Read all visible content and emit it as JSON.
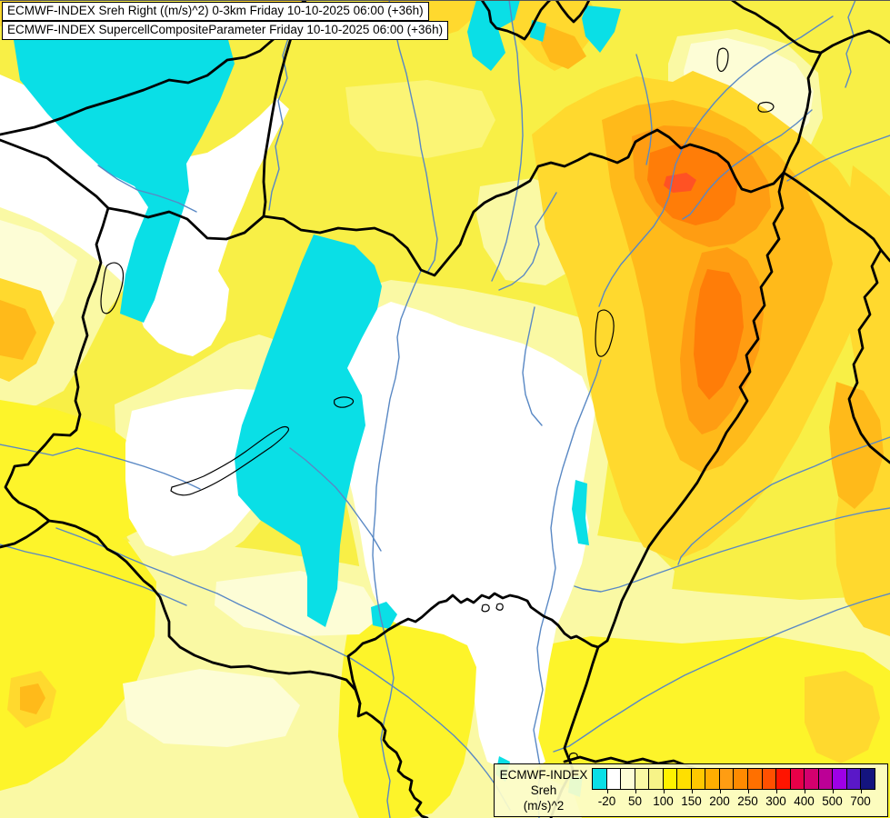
{
  "titles": {
    "line1": "ECMWF-INDEX Sreh Right ((m/s)^2) 0-3km Friday 10-10-2025 06:00 (+36h)",
    "line2": "ECMWF-INDEX SupercellCompositeParameter Friday 10-10-2025 06:00 (+36h)"
  },
  "legend": {
    "title": "ECMWF-INDEX",
    "param": "Sreh",
    "units": "(m/s)^2",
    "ticks": [
      "-20",
      "50",
      "100",
      "150",
      "200",
      "250",
      "300",
      "400",
      "500",
      "700"
    ],
    "colors": [
      "#0ADFE6",
      "#FFFFFF",
      "#FDFDD6",
      "#FAF9A4",
      "#F7F388",
      "#FFF200",
      "#FFDF00",
      "#FFC800",
      "#FFAE00",
      "#FF9D12",
      "#FF8A00",
      "#FF7000",
      "#FF5000",
      "#FF1400",
      "#E80048",
      "#D4006E",
      "#BC0096",
      "#9E00E6",
      "#5A18C8",
      "#14147E"
    ]
  },
  "map": {
    "palette": {
      "yellow": "#F8EF46",
      "bright_yellow": "#FDF42A",
      "light_yellow": "#FBF575",
      "pale_yellow": "#FAF9A4",
      "cream": "#FDFDD6",
      "white": "#FFFFFF",
      "gold": "#FFD92E",
      "amber": "#FFBA1A",
      "orange": "#FF9D12",
      "deep_orange": "#FF7D08",
      "red_orange": "#FF5224",
      "cyan": "#0ADFE6",
      "river": "#5988C4",
      "border": "#000000",
      "lake_outline": "#000000"
    }
  }
}
